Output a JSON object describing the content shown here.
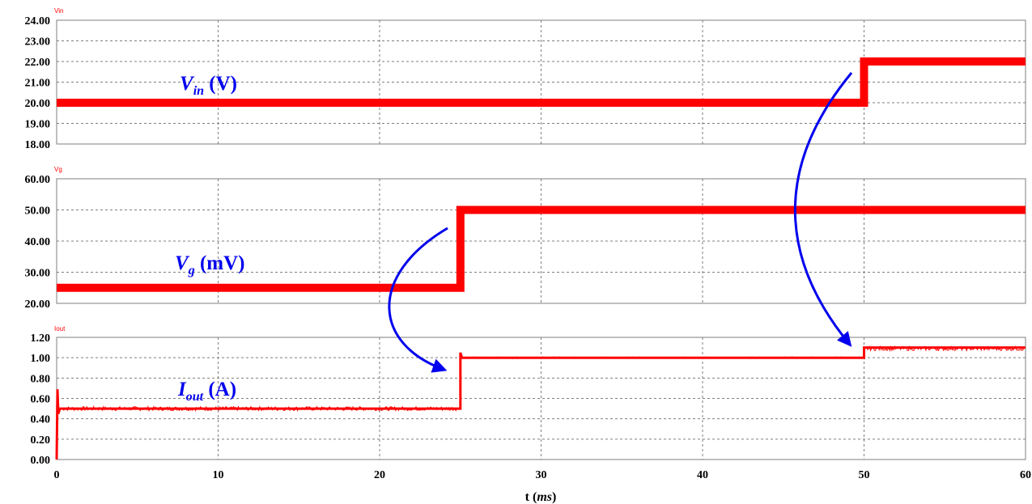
{
  "chart_data": {
    "type": "line",
    "x_axis": {
      "label_main": "t (",
      "label_unit": "ms",
      "label_close": ")",
      "range": [
        0,
        60
      ],
      "ticks": [
        "0",
        "10",
        "20",
        "30",
        "40",
        "50",
        "60"
      ],
      "grid": true
    },
    "panels": [
      {
        "tag": "Vin",
        "annotation": {
          "symbol": "V",
          "subscript": "in",
          "unit": " (V)"
        },
        "ylim": [
          18,
          24
        ],
        "yticks": [
          "18.00",
          "19.00",
          "20.00",
          "21.00",
          "22.00",
          "23.00",
          "24.00"
        ],
        "grid": true,
        "line_color": "#ff0000",
        "series_points": {
          "x": [
            0,
            50,
            50,
            60
          ],
          "y": [
            20,
            20,
            22,
            22
          ]
        },
        "noise_segments": []
      },
      {
        "tag": "Vg",
        "annotation": {
          "symbol": "V",
          "subscript": "g",
          "unit": " (mV)"
        },
        "ylim": [
          20,
          60
        ],
        "yticks": [
          "20.00",
          "30.00",
          "40.00",
          "50.00",
          "60.00"
        ],
        "grid": true,
        "line_color": "#ff0000",
        "series_points": {
          "x": [
            0,
            25,
            25,
            60
          ],
          "y": [
            25,
            25,
            50,
            50
          ]
        },
        "noise_segments": []
      },
      {
        "tag": "Iout",
        "annotation": {
          "symbol": "I",
          "subscript": "out",
          "unit": " (A)"
        },
        "ylim": [
          0,
          1.2
        ],
        "yticks": [
          "0.00",
          "0.20",
          "0.40",
          "0.60",
          "0.80",
          "1.00",
          "1.20"
        ],
        "grid": true,
        "line_color": "#ff0000",
        "series_points": {
          "x": [
            0,
            0.05,
            0.1,
            0.2,
            25,
            25,
            25.1,
            50,
            50,
            60
          ],
          "y": [
            0,
            0.69,
            0.45,
            0.5,
            0.5,
            1.05,
            1.0,
            1.0,
            1.1,
            1.1
          ]
        },
        "noise_segments": [
          {
            "x_start": 0.3,
            "x_end": 24.9,
            "center": 0.5,
            "amplitude": 0.02
          },
          {
            "x_start": 25.1,
            "x_end": 49.9,
            "center": 1.0,
            "amplitude": 0.008
          },
          {
            "x_start": 50.1,
            "x_end": 60,
            "center": 1.09,
            "amplitude": 0.02
          }
        ]
      }
    ],
    "arrow_color": "#0000ee"
  }
}
